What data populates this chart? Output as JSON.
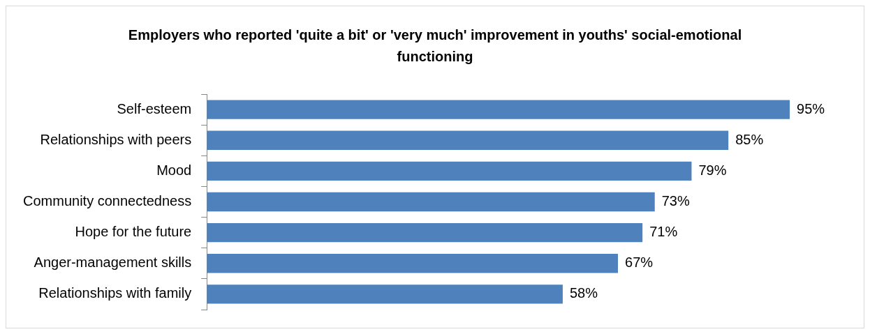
{
  "chart_data": {
    "type": "bar",
    "orientation": "horizontal",
    "title": "Employers who reported 'quite a bit' or 'very much' improvement in youths' social-emotional functioning",
    "categories": [
      "Self-esteem",
      "Relationships with peers",
      "Mood",
      "Community connectedness",
      "Hope for the future",
      "Anger-management skills",
      "Relationships with family"
    ],
    "values": [
      95,
      85,
      79,
      73,
      71,
      67,
      58
    ],
    "color": "#4f81bd",
    "value_labels": [
      "95%",
      "85%",
      "79%",
      "73%",
      "71%",
      "67%",
      "58%"
    ],
    "grid": false,
    "legend": false
  }
}
